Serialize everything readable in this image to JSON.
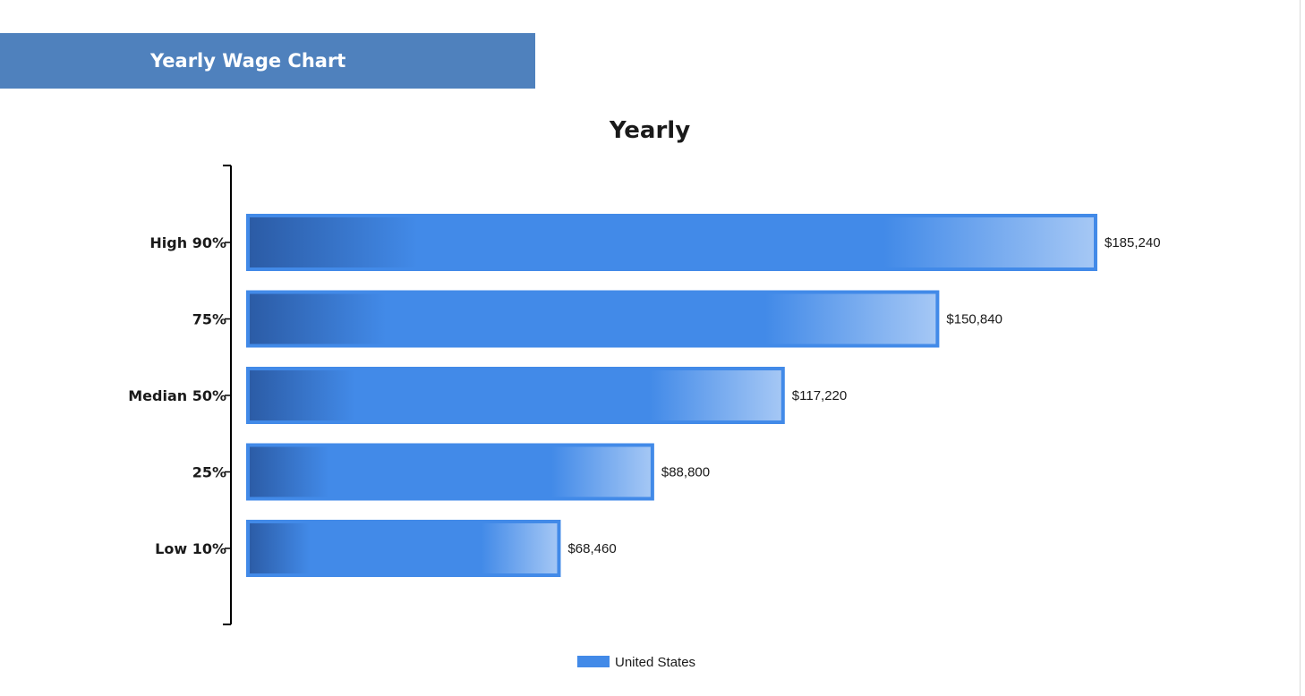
{
  "header": {
    "title": "Yearly Wage Chart"
  },
  "colors": {
    "header_band": "#4f81bd",
    "bar_border": "#428ae8",
    "bar_dark": "#2b5ba5",
    "bar_mid": "#428ae8",
    "bar_light": "#a6c8f5",
    "axis": "#000000"
  },
  "chart_data": {
    "type": "bar",
    "orientation": "horizontal",
    "title": "Yearly",
    "xlabel": "",
    "ylabel": "",
    "categories": [
      "High 90%",
      "75%",
      "Median 50%",
      "25%",
      "Low 10%"
    ],
    "series": [
      {
        "name": "United States",
        "values": [
          185240,
          150840,
          117220,
          88800,
          68460
        ],
        "value_labels": [
          "$185,240",
          "$150,840",
          "$117,220",
          "$88,800",
          "$68,460"
        ]
      }
    ],
    "grid": false,
    "legend": "bottom-center"
  }
}
